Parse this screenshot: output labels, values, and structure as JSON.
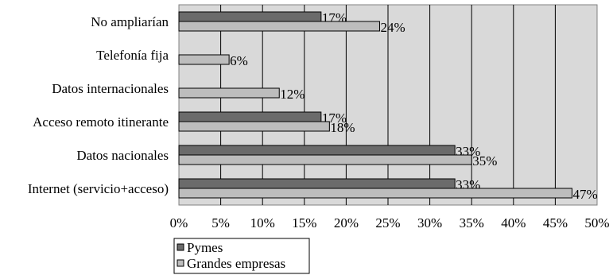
{
  "chart_data": {
    "type": "bar",
    "orientation": "horizontal",
    "categories": [
      "No ampliarían",
      "Telefonía fija",
      "Datos internacionales",
      "Acceso remoto itinerante",
      "Datos nacionales",
      "Internet (servicio+acceso)"
    ],
    "series": [
      {
        "name": "Pymes",
        "values": [
          17,
          null,
          null,
          17,
          33,
          33
        ],
        "color": "#6b6b6b"
      },
      {
        "name": "Grandes empresas",
        "values": [
          24,
          6,
          12,
          18,
          35,
          47
        ],
        "color": "#bdbdbd"
      }
    ],
    "value_suffix": "%",
    "xlim": [
      0,
      50
    ],
    "xticks": [
      0,
      5,
      10,
      15,
      20,
      25,
      30,
      35,
      40,
      45,
      50
    ],
    "xtick_labels": [
      "0%",
      "5%",
      "10%",
      "15%",
      "20%",
      "25%",
      "30%",
      "35%",
      "40%",
      "45%",
      "50%"
    ],
    "grid": true,
    "plot_background": "#d9d9d9",
    "legend_position": "bottom-left",
    "title": "",
    "xlabel": "",
    "ylabel": ""
  }
}
